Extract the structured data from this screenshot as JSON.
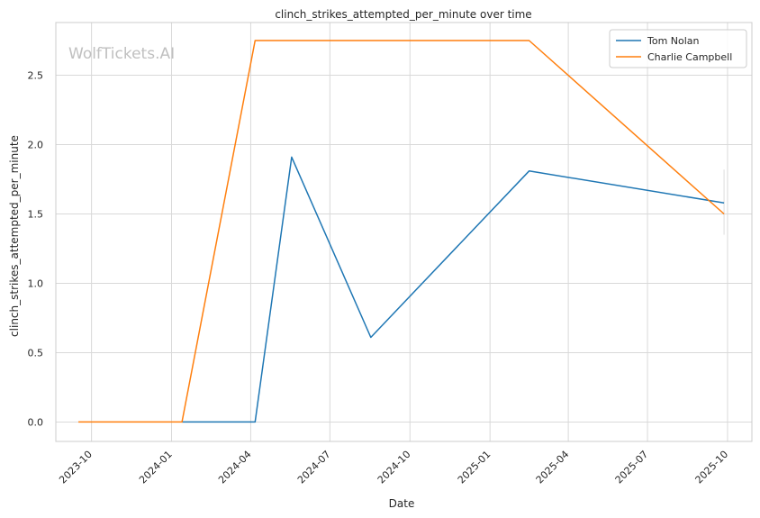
{
  "watermark": "WolfTickets.AI",
  "chart_data": {
    "type": "line",
    "title": "clinch_strikes_attempted_per_minute over time",
    "xlabel": "Date",
    "ylabel": "clinch_strikes_attempted_per_minute",
    "x_ticks": [
      "2023-10",
      "2024-01",
      "2024-04",
      "2024-07",
      "2024-10",
      "2025-01",
      "2025-04",
      "2025-07",
      "2025-10"
    ],
    "y_ticks": [
      "0.0",
      "0.5",
      "1.0",
      "1.5",
      "2.0",
      "2.5"
    ],
    "ylim": [
      -0.14,
      2.88
    ],
    "xlim": [
      "2023-08-21",
      "2025-10-29"
    ],
    "grid": true,
    "legend_position": "top-right",
    "series": [
      {
        "name": "Tom Nolan",
        "color": "#1f77b4",
        "points": [
          {
            "x": "2024-01-13",
            "y": 0.0
          },
          {
            "x": "2024-04-06",
            "y": 0.0
          },
          {
            "x": "2024-05-18",
            "y": 1.91
          },
          {
            "x": "2024-08-17",
            "y": 0.61
          },
          {
            "x": "2025-02-15",
            "y": 1.81
          },
          {
            "x": "2025-09-27",
            "y": 1.58
          }
        ]
      },
      {
        "name": "Charlie Campbell",
        "color": "#ff7f0e",
        "points": [
          {
            "x": "2023-09-16",
            "y": 0.0
          },
          {
            "x": "2024-01-13",
            "y": 0.0
          },
          {
            "x": "2024-04-06",
            "y": 2.75
          },
          {
            "x": "2025-02-15",
            "y": 2.75
          },
          {
            "x": "2025-09-27",
            "y": 1.5
          }
        ]
      }
    ]
  }
}
